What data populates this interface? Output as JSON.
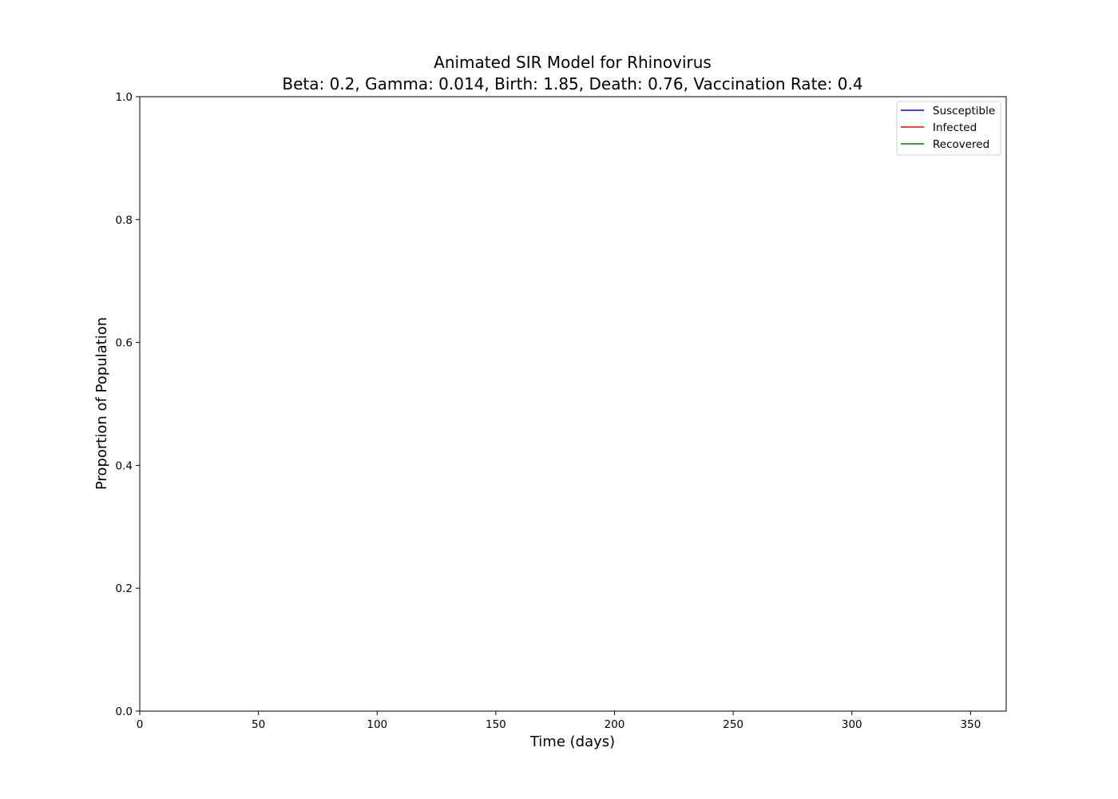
{
  "chart_data": {
    "type": "line",
    "title": "Animated SIR Model for Rhinovirus",
    "subtitle": "Beta: 0.2, Gamma: 0.014, Birth: 1.85, Death: 0.76, Vaccination Rate: 0.4",
    "xlabel": "Time (days)",
    "ylabel": "Proportion of Population",
    "xlim": [
      0,
      365
    ],
    "ylim": [
      0,
      1.0
    ],
    "xticks": [
      0,
      50,
      100,
      150,
      200,
      250,
      300,
      350
    ],
    "xtick_labels": [
      "0",
      "50",
      "100",
      "150",
      "200",
      "250",
      "300",
      "350"
    ],
    "yticks": [
      0.0,
      0.2,
      0.4,
      0.6,
      0.8,
      1.0
    ],
    "ytick_labels": [
      "0.0",
      "0.2",
      "0.4",
      "0.6",
      "0.8",
      "1.0"
    ],
    "grid": false,
    "legend_position": "top-right",
    "series": [
      {
        "name": "Susceptible",
        "color": "#0000ff",
        "x": [],
        "y": []
      },
      {
        "name": "Infected",
        "color": "#ff0000",
        "x": [],
        "y": []
      },
      {
        "name": "Recovered",
        "color": "#008000",
        "x": [],
        "y": []
      }
    ]
  }
}
